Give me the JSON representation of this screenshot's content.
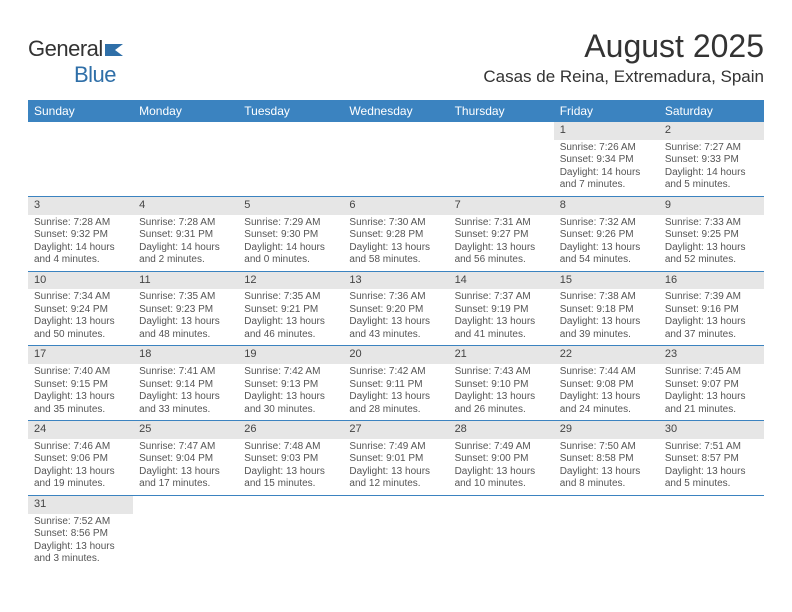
{
  "logo": {
    "general": "General",
    "blue": "Blue"
  },
  "title": "August 2025",
  "subtitle": "Casas de Reina, Extremadura, Spain",
  "header_bg": "#3b83c0",
  "header_fg": "#ffffff",
  "daynum_bg": "#e6e6e6",
  "border_color": "#3b83c0",
  "daynames": [
    "Sunday",
    "Monday",
    "Tuesday",
    "Wednesday",
    "Thursday",
    "Friday",
    "Saturday"
  ],
  "grid": [
    [
      null,
      null,
      null,
      null,
      null,
      {
        "n": "1",
        "sr": "7:26 AM",
        "ss": "9:34 PM",
        "dl": "14 hours and 7 minutes."
      },
      {
        "n": "2",
        "sr": "7:27 AM",
        "ss": "9:33 PM",
        "dl": "14 hours and 5 minutes."
      }
    ],
    [
      {
        "n": "3",
        "sr": "7:28 AM",
        "ss": "9:32 PM",
        "dl": "14 hours and 4 minutes."
      },
      {
        "n": "4",
        "sr": "7:28 AM",
        "ss": "9:31 PM",
        "dl": "14 hours and 2 minutes."
      },
      {
        "n": "5",
        "sr": "7:29 AM",
        "ss": "9:30 PM",
        "dl": "14 hours and 0 minutes."
      },
      {
        "n": "6",
        "sr": "7:30 AM",
        "ss": "9:28 PM",
        "dl": "13 hours and 58 minutes."
      },
      {
        "n": "7",
        "sr": "7:31 AM",
        "ss": "9:27 PM",
        "dl": "13 hours and 56 minutes."
      },
      {
        "n": "8",
        "sr": "7:32 AM",
        "ss": "9:26 PM",
        "dl": "13 hours and 54 minutes."
      },
      {
        "n": "9",
        "sr": "7:33 AM",
        "ss": "9:25 PM",
        "dl": "13 hours and 52 minutes."
      }
    ],
    [
      {
        "n": "10",
        "sr": "7:34 AM",
        "ss": "9:24 PM",
        "dl": "13 hours and 50 minutes."
      },
      {
        "n": "11",
        "sr": "7:35 AM",
        "ss": "9:23 PM",
        "dl": "13 hours and 48 minutes."
      },
      {
        "n": "12",
        "sr": "7:35 AM",
        "ss": "9:21 PM",
        "dl": "13 hours and 46 minutes."
      },
      {
        "n": "13",
        "sr": "7:36 AM",
        "ss": "9:20 PM",
        "dl": "13 hours and 43 minutes."
      },
      {
        "n": "14",
        "sr": "7:37 AM",
        "ss": "9:19 PM",
        "dl": "13 hours and 41 minutes."
      },
      {
        "n": "15",
        "sr": "7:38 AM",
        "ss": "9:18 PM",
        "dl": "13 hours and 39 minutes."
      },
      {
        "n": "16",
        "sr": "7:39 AM",
        "ss": "9:16 PM",
        "dl": "13 hours and 37 minutes."
      }
    ],
    [
      {
        "n": "17",
        "sr": "7:40 AM",
        "ss": "9:15 PM",
        "dl": "13 hours and 35 minutes."
      },
      {
        "n": "18",
        "sr": "7:41 AM",
        "ss": "9:14 PM",
        "dl": "13 hours and 33 minutes."
      },
      {
        "n": "19",
        "sr": "7:42 AM",
        "ss": "9:13 PM",
        "dl": "13 hours and 30 minutes."
      },
      {
        "n": "20",
        "sr": "7:42 AM",
        "ss": "9:11 PM",
        "dl": "13 hours and 28 minutes."
      },
      {
        "n": "21",
        "sr": "7:43 AM",
        "ss": "9:10 PM",
        "dl": "13 hours and 26 minutes."
      },
      {
        "n": "22",
        "sr": "7:44 AM",
        "ss": "9:08 PM",
        "dl": "13 hours and 24 minutes."
      },
      {
        "n": "23",
        "sr": "7:45 AM",
        "ss": "9:07 PM",
        "dl": "13 hours and 21 minutes."
      }
    ],
    [
      {
        "n": "24",
        "sr": "7:46 AM",
        "ss": "9:06 PM",
        "dl": "13 hours and 19 minutes."
      },
      {
        "n": "25",
        "sr": "7:47 AM",
        "ss": "9:04 PM",
        "dl": "13 hours and 17 minutes."
      },
      {
        "n": "26",
        "sr": "7:48 AM",
        "ss": "9:03 PM",
        "dl": "13 hours and 15 minutes."
      },
      {
        "n": "27",
        "sr": "7:49 AM",
        "ss": "9:01 PM",
        "dl": "13 hours and 12 minutes."
      },
      {
        "n": "28",
        "sr": "7:49 AM",
        "ss": "9:00 PM",
        "dl": "13 hours and 10 minutes."
      },
      {
        "n": "29",
        "sr": "7:50 AM",
        "ss": "8:58 PM",
        "dl": "13 hours and 8 minutes."
      },
      {
        "n": "30",
        "sr": "7:51 AM",
        "ss": "8:57 PM",
        "dl": "13 hours and 5 minutes."
      }
    ],
    [
      {
        "n": "31",
        "sr": "7:52 AM",
        "ss": "8:56 PM",
        "dl": "13 hours and 3 minutes."
      },
      null,
      null,
      null,
      null,
      null,
      null
    ]
  ],
  "labels": {
    "sunrise": "Sunrise: ",
    "sunset": "Sunset: ",
    "daylight": "Daylight: "
  }
}
